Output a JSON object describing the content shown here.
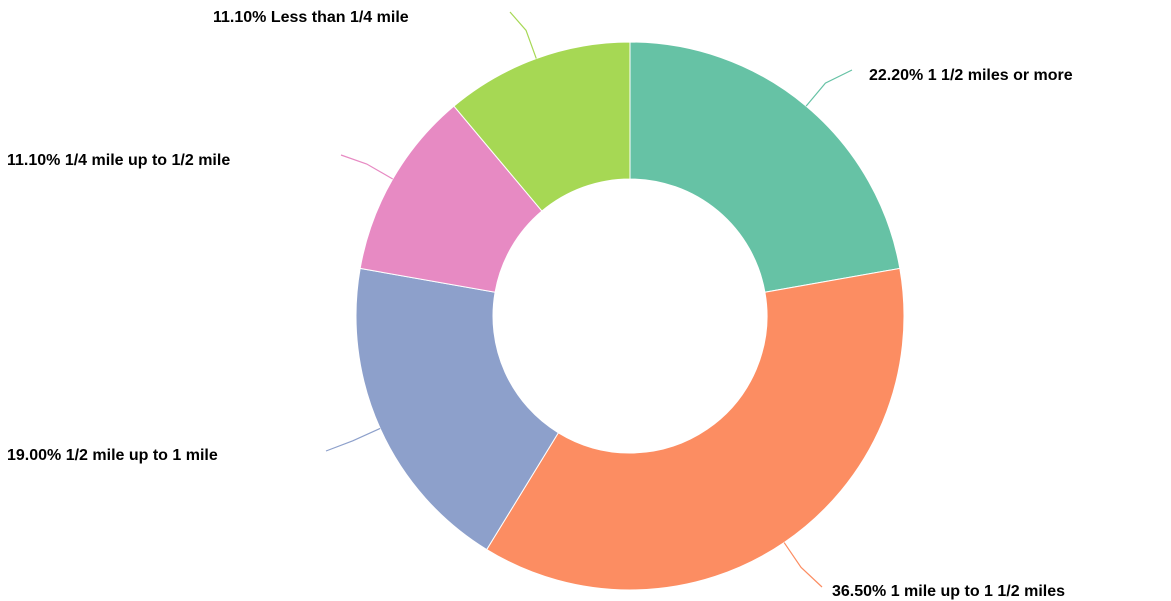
{
  "chart_data": {
    "type": "pie",
    "subtype": "donut",
    "title": "",
    "unit": "%",
    "slices": [
      {
        "label": "1 1/2 miles or more",
        "value": 22.2,
        "value_text": "22.20%",
        "color": "#66c2a5"
      },
      {
        "label": "1 mile up to 1 1/2 miles",
        "value": 36.5,
        "value_text": "36.50%",
        "color": "#fc8d62"
      },
      {
        "label": "1/2 mile up to 1 mile",
        "value": 19.0,
        "value_text": "19.00%",
        "color": "#8da0cb"
      },
      {
        "label": "1/4 mile up to 1/2 mile",
        "value": 11.1,
        "value_text": "11.10%",
        "color": "#e78ac3"
      },
      {
        "label": "Less than 1/4 mile",
        "value": 11.1,
        "value_text": "11.10%",
        "color": "#a6d854"
      }
    ],
    "legend": "none",
    "labels": "outside-with-leader-lines"
  }
}
